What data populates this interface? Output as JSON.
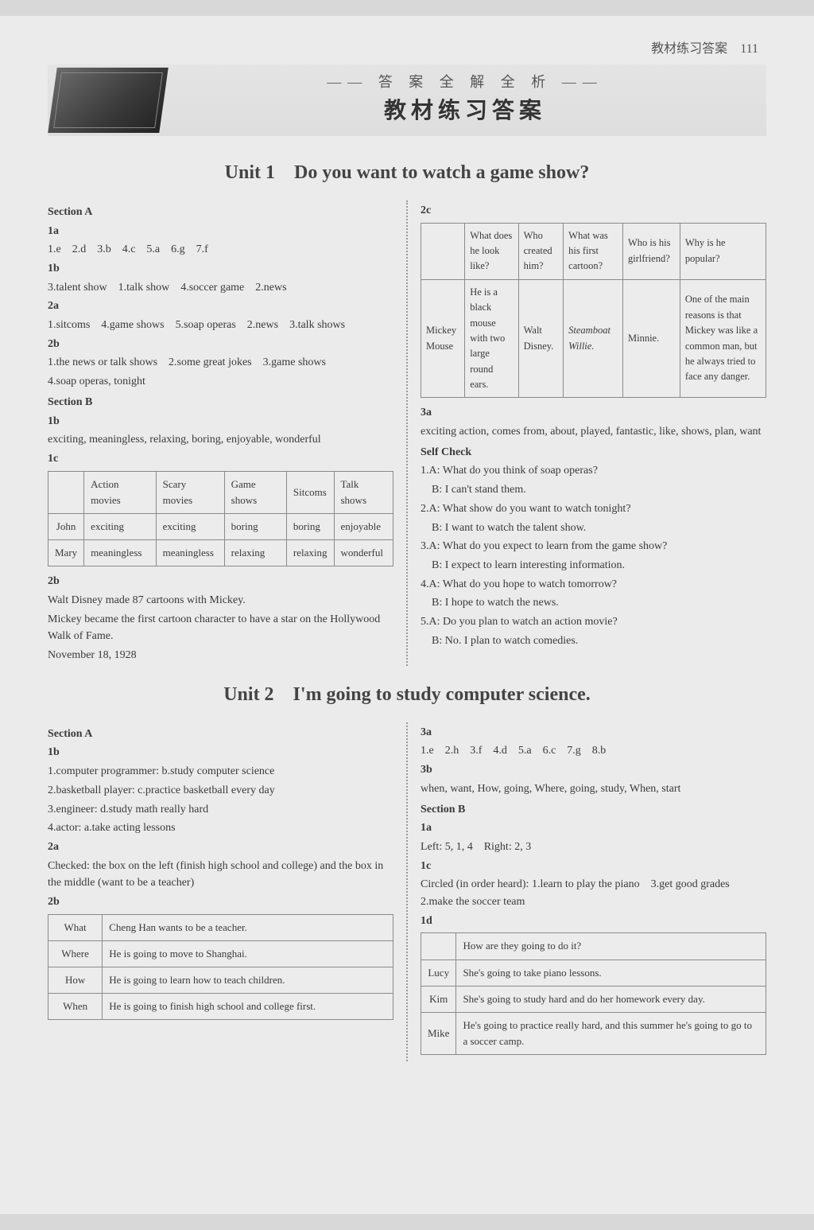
{
  "header": {
    "right_label": "教材练习答案",
    "page_number": "111"
  },
  "banner": {
    "subtitle": "—— 答 案 全 解 全 析 ——",
    "title": "教材练习答案"
  },
  "unit1": {
    "title": "Unit 1　Do you want to watch a game show?",
    "left": {
      "sectionA": "Section A",
      "l1a": "1a",
      "l1a_ans": "1.e　2.d　3.b　4.c　5.a　6.g　7.f",
      "l1b": "1b",
      "l1b_ans": "3.talent show　1.talk show　4.soccer game　2.news",
      "l2a": "2a",
      "l2a_ans": "1.sitcoms　4.game shows　5.soap operas　2.news　3.talk shows",
      "l2b": "2b",
      "l2b_ans1": "1.the news or talk shows　2.some great jokes　3.game shows",
      "l2b_ans2": "4.soap operas, tonight",
      "sectionB": "Section B",
      "l1b2": "1b",
      "l1b2_ans": "exciting, meaningless, relaxing, boring, enjoyable, wonderful",
      "l1c": "1c",
      "t1c": {
        "headers": [
          "",
          "Action movies",
          "Scary movies",
          "Game shows",
          "Sitcoms",
          "Talk shows"
        ],
        "rows": [
          [
            "John",
            "exciting",
            "exciting",
            "boring",
            "boring",
            "enjoyable"
          ],
          [
            "Mary",
            "meaningless",
            "meaningless",
            "relaxing",
            "relaxing",
            "wonderful"
          ]
        ]
      },
      "l2b2": "2b",
      "l2b2_1": "Walt Disney made 87 cartoons with Mickey.",
      "l2b2_2": "Mickey became the first cartoon character to have a star on the Hollywood Walk of Fame.",
      "l2b2_3": "November 18, 1928"
    },
    "right": {
      "l2c": "2c",
      "t2c": {
        "headers": [
          "",
          "What does he look like?",
          "Who created him?",
          "What was his first cartoon?",
          "Who is his girlfriend?",
          "Why is he popular?"
        ],
        "row": [
          "Mickey Mouse",
          "He is a black mouse with two large round ears.",
          "Walt Disney.",
          "Steamboat Willie.",
          "Minnie.",
          "One of the main reasons is that Mickey was like a common man, but he always tried to face any danger."
        ]
      },
      "l3a": "3a",
      "l3a_ans": "exciting action, comes from, about, played, fantastic, like, shows, plan, want",
      "selfcheck": "Self Check",
      "sc1a": "1.A: What do you think of soap operas?",
      "sc1b": "　B: I can't stand them.",
      "sc2a": "2.A: What show do you want to watch tonight?",
      "sc2b": "　B: I want to watch the talent show.",
      "sc3a": "3.A: What do you expect to learn from the game show?",
      "sc3b": "　B: I expect to learn interesting information.",
      "sc4a": "4.A: What do you hope to watch tomorrow?",
      "sc4b": "　B: I hope to watch the news.",
      "sc5a": "5.A: Do you plan to watch an action movie?",
      "sc5b": "　B: No. I plan to watch comedies."
    }
  },
  "unit2": {
    "title": "Unit 2　I'm going to study computer science.",
    "left": {
      "sectionA": "Section A",
      "l1b": "1b",
      "l1b_1": "1.computer programmer: b.study computer science",
      "l1b_2": "2.basketball player: c.practice basketball every day",
      "l1b_3": "3.engineer: d.study math really hard",
      "l1b_4": "4.actor: a.take acting lessons",
      "l2a": "2a",
      "l2a_ans": "Checked: the box on the left (finish high school and college) and the box in the middle (want to be a teacher)",
      "l2b": "2b",
      "t2b": {
        "rows": [
          [
            "What",
            "Cheng Han wants to be a teacher."
          ],
          [
            "Where",
            "He is going to move to Shanghai."
          ],
          [
            "How",
            "He is going to learn how to teach children."
          ],
          [
            "When",
            "He is going to finish high school and college first."
          ]
        ]
      }
    },
    "right": {
      "l3a": "3a",
      "l3a_ans": "1.e　2.h　3.f　4.d　5.a　6.c　7.g　8.b",
      "l3b": "3b",
      "l3b_ans": "when, want, How, going, Where, going, study, When, start",
      "sectionB": "Section B",
      "l1a": "1a",
      "l1a_ans": "Left: 5, 1, 4　Right: 2, 3",
      "l1c": "1c",
      "l1c_ans": "Circled (in order heard): 1.learn to play the piano　3.get good grades　2.make the soccer team",
      "l1d": "1d",
      "t1d": {
        "header": [
          "",
          "How are they going to do it?"
        ],
        "rows": [
          [
            "Lucy",
            "She's going to take piano lessons."
          ],
          [
            "Kim",
            "She's going to study hard and do her homework every day."
          ],
          [
            "Mike",
            "He's going to practice really hard, and this summer he's going to go to a soccer camp."
          ]
        ]
      }
    }
  }
}
